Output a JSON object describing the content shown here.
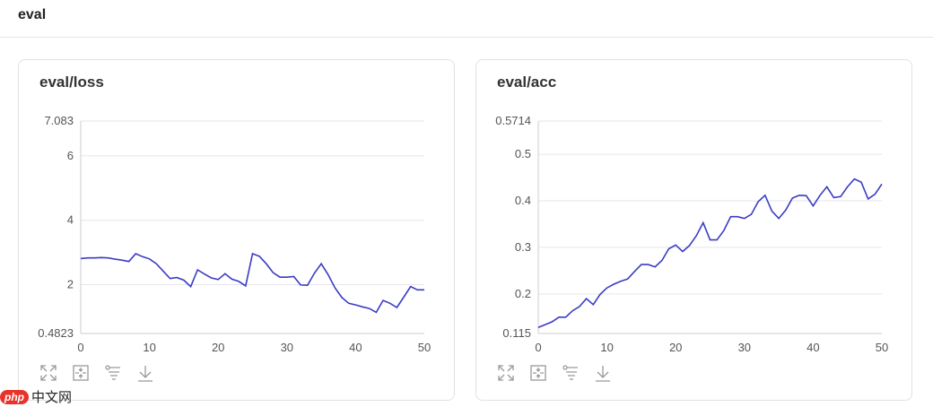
{
  "section": {
    "title": "eval"
  },
  "line_color": "#3b3bc4",
  "watermark": {
    "logo": "php",
    "text": "中文网"
  },
  "toolbar": {
    "icons": [
      "expand-icon",
      "fit-icon",
      "filter-icon",
      "download-icon"
    ]
  },
  "chart_data": [
    {
      "type": "line",
      "title": "eval/loss",
      "xlim": [
        0,
        50
      ],
      "ylim": [
        0.4823,
        7.083
      ],
      "xticks": [
        0,
        10,
        20,
        30,
        40,
        50
      ],
      "yticks": [
        0.4823,
        2,
        4,
        6,
        7.083
      ],
      "ytick_labels": [
        "0.4823",
        "2",
        "4",
        "6",
        "7.083"
      ],
      "grid": true,
      "x": [
        0,
        1,
        2,
        3,
        4,
        5,
        6,
        7,
        8,
        9,
        10,
        11,
        12,
        13,
        14,
        15,
        16,
        17,
        18,
        19,
        20,
        21,
        22,
        23,
        24,
        25,
        26,
        27,
        28,
        29,
        30,
        31,
        32,
        33,
        34,
        35,
        36,
        37,
        38,
        39,
        40,
        41,
        42,
        43,
        44,
        45,
        46,
        47,
        48,
        49,
        50
      ],
      "y": [
        2.81,
        2.83,
        2.83,
        2.84,
        2.83,
        2.79,
        2.76,
        2.72,
        2.96,
        2.87,
        2.8,
        2.65,
        2.42,
        2.19,
        2.22,
        2.14,
        1.94,
        2.46,
        2.33,
        2.21,
        2.16,
        2.34,
        2.17,
        2.1,
        1.96,
        2.96,
        2.88,
        2.65,
        2.37,
        2.23,
        2.23,
        2.25,
        1.99,
        1.98,
        2.35,
        2.65,
        2.31,
        1.9,
        1.6,
        1.42,
        1.37,
        1.31,
        1.26,
        1.14,
        1.51,
        1.42,
        1.29,
        1.61,
        1.94,
        1.84,
        1.84
      ]
    },
    {
      "type": "line",
      "title": "eval/acc",
      "xlim": [
        0,
        50
      ],
      "ylim": [
        0.115,
        0.5714
      ],
      "xticks": [
        0,
        10,
        20,
        30,
        40,
        50
      ],
      "yticks": [
        0.115,
        0.2,
        0.3,
        0.4,
        0.5,
        0.5714
      ],
      "ytick_labels": [
        "0.115",
        "0.2",
        "0.3",
        "0.4",
        "0.5",
        "0.5714"
      ],
      "grid": true,
      "x": [
        0,
        1,
        2,
        3,
        4,
        5,
        6,
        7,
        8,
        9,
        10,
        11,
        12,
        13,
        14,
        15,
        16,
        17,
        18,
        19,
        20,
        21,
        22,
        23,
        24,
        25,
        26,
        27,
        28,
        29,
        30,
        31,
        32,
        33,
        34,
        35,
        36,
        37,
        38,
        39,
        40,
        41,
        42,
        43,
        44,
        45,
        46,
        47,
        48,
        49,
        50
      ],
      "y": [
        0.128,
        0.134,
        0.14,
        0.15,
        0.15,
        0.164,
        0.173,
        0.19,
        0.177,
        0.199,
        0.213,
        0.221,
        0.227,
        0.232,
        0.248,
        0.263,
        0.263,
        0.258,
        0.272,
        0.297,
        0.305,
        0.291,
        0.304,
        0.325,
        0.353,
        0.316,
        0.316,
        0.336,
        0.366,
        0.366,
        0.362,
        0.371,
        0.398,
        0.412,
        0.378,
        0.362,
        0.38,
        0.406,
        0.412,
        0.411,
        0.389,
        0.412,
        0.43,
        0.407,
        0.409,
        0.43,
        0.447,
        0.44,
        0.404,
        0.414,
        0.436
      ]
    }
  ]
}
